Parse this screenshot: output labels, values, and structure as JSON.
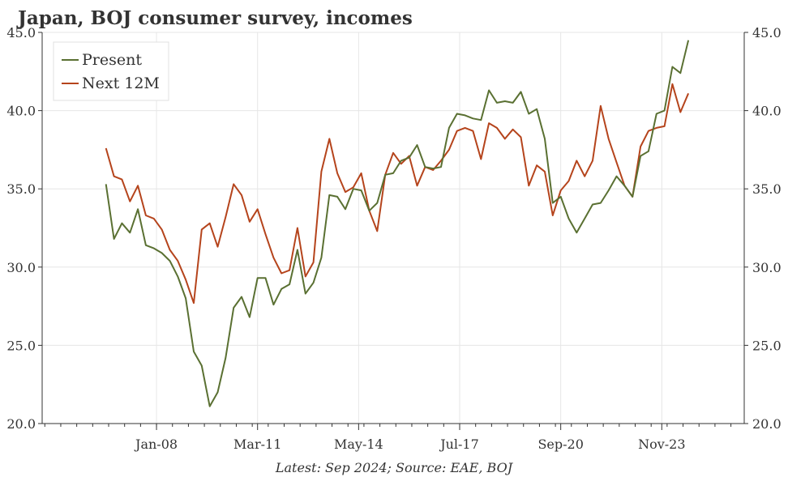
{
  "chart_data": {
    "type": "line",
    "title": "Japan, BOJ consumer survey, incomes",
    "source_note": "Latest: Sep 2024; Source: EAE, BOJ",
    "ylim": [
      20,
      45
    ],
    "yticks": [
      "20.0",
      "25.0",
      "30.0",
      "35.0",
      "40.0",
      "45.0"
    ],
    "xlim": [
      "2004-06",
      "2026-06"
    ],
    "xticks": [
      {
        "label": "Jan-08",
        "date": "2008-01"
      },
      {
        "label": "Mar-11",
        "date": "2011-03"
      },
      {
        "label": "May-14",
        "date": "2014-05"
      },
      {
        "label": "Jul-17",
        "date": "2017-07"
      },
      {
        "label": "Sep-20",
        "date": "2020-09"
      },
      {
        "label": "Nov-23",
        "date": "2023-11"
      }
    ],
    "grid": true,
    "legend_position": "top-left",
    "x": [
      "2006-06",
      "2006-09",
      "2006-12",
      "2007-03",
      "2007-06",
      "2007-09",
      "2007-12",
      "2008-03",
      "2008-06",
      "2008-09",
      "2008-12",
      "2009-03",
      "2009-06",
      "2009-09",
      "2009-12",
      "2010-03",
      "2010-06",
      "2010-09",
      "2010-12",
      "2011-03",
      "2011-06",
      "2011-09",
      "2011-12",
      "2012-03",
      "2012-06",
      "2012-09",
      "2012-12",
      "2013-03",
      "2013-06",
      "2013-09",
      "2013-12",
      "2014-03",
      "2014-06",
      "2014-09",
      "2014-12",
      "2015-03",
      "2015-06",
      "2015-09",
      "2015-12",
      "2016-03",
      "2016-06",
      "2016-09",
      "2016-12",
      "2017-03",
      "2017-06",
      "2017-09",
      "2017-12",
      "2018-03",
      "2018-06",
      "2018-09",
      "2018-12",
      "2019-03",
      "2019-06",
      "2019-09",
      "2019-12",
      "2020-03",
      "2020-06",
      "2020-09",
      "2020-12",
      "2021-03",
      "2021-06",
      "2021-09",
      "2021-12",
      "2022-03",
      "2022-06",
      "2022-09",
      "2022-12",
      "2023-03",
      "2023-06",
      "2023-09",
      "2023-12",
      "2024-03",
      "2024-06",
      "2024-09"
    ],
    "series": [
      {
        "name": "Present",
        "color": "#5a7032",
        "values": [
          35.3,
          31.8,
          32.8,
          32.2,
          33.7,
          31.4,
          31.2,
          30.9,
          30.4,
          29.4,
          28.0,
          24.6,
          23.7,
          21.1,
          22.0,
          24.2,
          27.4,
          28.1,
          26.8,
          29.3,
          29.3,
          27.6,
          28.6,
          28.9,
          31.1,
          28.3,
          29.0,
          30.6,
          34.6,
          34.5,
          33.7,
          35.0,
          34.9,
          33.6,
          34.1,
          35.9,
          36.0,
          36.8,
          37.0,
          37.8,
          36.4,
          36.3,
          36.4,
          38.9,
          39.8,
          39.7,
          39.5,
          39.4,
          41.3,
          40.5,
          40.6,
          40.5,
          41.2,
          39.8,
          40.1,
          38.2,
          34.1,
          34.5,
          33.1,
          32.2,
          33.1,
          34.0,
          34.1,
          34.9,
          35.8,
          35.2,
          34.5,
          37.1,
          37.4,
          39.8,
          40.0,
          42.8,
          42.4,
          44.5
        ]
      },
      {
        "name": "Next 12M",
        "color": "#b5441c",
        "values": [
          37.6,
          35.8,
          35.6,
          34.2,
          35.2,
          33.3,
          33.1,
          32.4,
          31.1,
          30.4,
          29.2,
          27.7,
          32.4,
          32.8,
          31.3,
          33.2,
          35.3,
          34.6,
          32.9,
          33.7,
          32.1,
          30.6,
          29.6,
          29.8,
          32.5,
          29.4,
          30.3,
          36.1,
          38.2,
          36.0,
          34.8,
          35.1,
          36.0,
          33.6,
          32.3,
          35.9,
          37.3,
          36.6,
          37.1,
          35.2,
          36.4,
          36.2,
          36.8,
          37.5,
          38.7,
          38.9,
          38.7,
          36.9,
          39.2,
          38.9,
          38.2,
          38.8,
          38.3,
          35.2,
          36.5,
          36.1,
          33.3,
          34.9,
          35.5,
          36.8,
          35.8,
          36.8,
          40.3,
          38.2,
          36.7,
          35.2,
          34.5,
          37.7,
          38.7,
          38.9,
          39.0,
          41.7,
          39.9,
          41.1
        ]
      }
    ]
  }
}
